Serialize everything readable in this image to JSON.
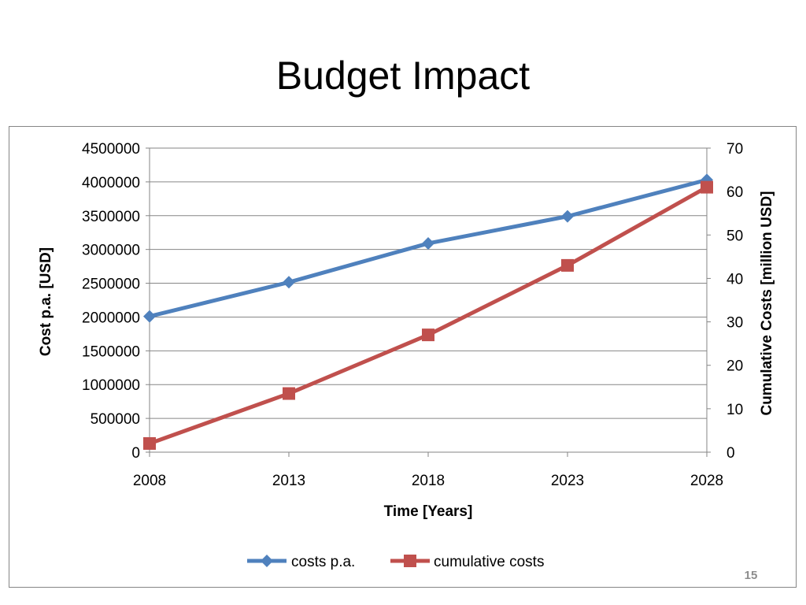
{
  "slide": {
    "title": "Budget Impact",
    "page_number": "15"
  },
  "colors": {
    "series_1": "#4F81BD",
    "series_2": "#C0504D",
    "gridline": "#868686"
  },
  "chart_data": {
    "type": "line",
    "title": "",
    "xlabel": "Time [Years]",
    "ylabel": "Cost p.a. [USD]",
    "y2label": "Cumulative Costs [million  USD]",
    "categories": [
      "2008",
      "2013",
      "2018",
      "2023",
      "2028"
    ],
    "ylim": [
      0,
      4500000
    ],
    "y_ticks": [
      "0",
      "500000",
      "1000000",
      "1500000",
      "2000000",
      "2500000",
      "3000000",
      "3500000",
      "4000000",
      "4500000"
    ],
    "y2lim": [
      0,
      70
    ],
    "y2_ticks": [
      "0",
      "10",
      "20",
      "30",
      "40",
      "50",
      "60",
      "70"
    ],
    "grid": true,
    "legend_position": "bottom",
    "series": [
      {
        "name": "costs p.a.",
        "axis": "left",
        "marker": "diamond",
        "values": [
          2010000,
          2515000,
          3090000,
          3490000,
          4030000
        ]
      },
      {
        "name": "cumulative costs",
        "axis": "right",
        "marker": "square",
        "values": [
          2,
          13.5,
          27,
          43,
          61
        ]
      }
    ]
  }
}
